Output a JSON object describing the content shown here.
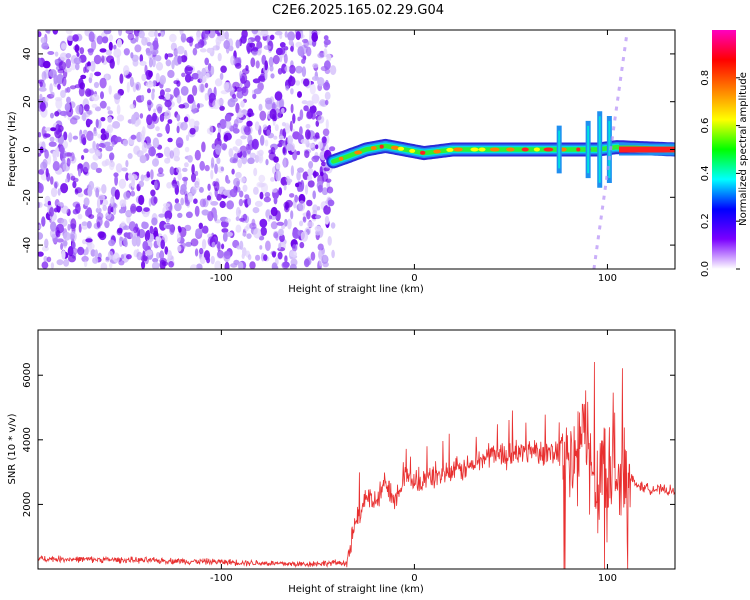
{
  "title": "C2E6.2025.165.02.29.G04",
  "chart_data": [
    {
      "type": "heatmap",
      "title": "",
      "xlabel": "Height of straight line (km)",
      "ylabel": "Frequency (Hz)",
      "xlim": [
        -195,
        135
      ],
      "ylim": [
        -50,
        50
      ],
      "x_ticks": [
        -100,
        0,
        100
      ],
      "y_ticks": [
        -40,
        -20,
        0,
        20,
        40
      ],
      "noise_region_x": [
        -195,
        -42
      ],
      "signal_trace": [
        {
          "x": -42,
          "y": -5
        },
        {
          "x": -35,
          "y": -3
        },
        {
          "x": -25,
          "y": 0
        },
        {
          "x": -15,
          "y": 1.5
        },
        {
          "x": -5,
          "y": 0
        },
        {
          "x": 5,
          "y": -1.5
        },
        {
          "x": 20,
          "y": 0
        },
        {
          "x": 40,
          "y": 0
        },
        {
          "x": 60,
          "y": 0
        },
        {
          "x": 80,
          "y": 0
        },
        {
          "x": 95,
          "y": 0
        },
        {
          "x": 105,
          "y": 1
        },
        {
          "x": 135,
          "y": 0
        }
      ],
      "side_streak": [
        {
          "x": 93,
          "y": -50
        },
        {
          "x": 110,
          "y": 48
        }
      ],
      "colorbar": {
        "label": "Normalized spectral amplitude",
        "range": [
          0,
          1
        ],
        "ticks": [
          "0.0",
          "0.2",
          "0.4",
          "0.6",
          "0.8"
        ],
        "colors": [
          "#ffffff",
          "#7a00ff",
          "#0000ff",
          "#00ffff",
          "#00ff00",
          "#ffff00",
          "#ff8000",
          "#ff0000",
          "#ff00c0"
        ]
      }
    },
    {
      "type": "line",
      "title": "",
      "xlabel": "Height of straight line (km)",
      "ylabel": "SNR (10 * v/v)",
      "xlim": [
        -195,
        135
      ],
      "ylim": [
        0,
        7400
      ],
      "x_ticks": [
        -100,
        0,
        100
      ],
      "y_ticks": [
        2000,
        4000,
        6000
      ],
      "color": "#e83030",
      "series": [
        {
          "x": [
            -195,
            -150,
            -100,
            -60,
            -35,
            -30,
            -25,
            -20,
            -15,
            -10,
            -5,
            0,
            10,
            20,
            30,
            40,
            50,
            60,
            70,
            75,
            80,
            85,
            88,
            92,
            95,
            98,
            100,
            103,
            106,
            110,
            115,
            120,
            135
          ],
          "y": [
            320,
            280,
            220,
            150,
            200,
            1500,
            2300,
            2000,
            2700,
            2200,
            2900,
            2600,
            2900,
            3000,
            3200,
            3600,
            3500,
            3700,
            3600,
            3700,
            3000,
            3600,
            4300,
            3200,
            2500,
            3700,
            2800,
            3500,
            2500,
            3000,
            2600,
            2500,
            2400
          ]
        }
      ]
    }
  ]
}
